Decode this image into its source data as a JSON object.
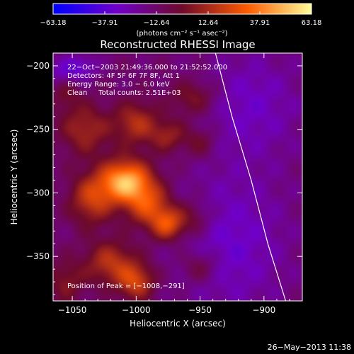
{
  "chart_data": {
    "type": "heatmap",
    "title": "Reconstructed RHESSI Image",
    "xlabel": "Heliocentric X (arcsec)",
    "ylabel": "Heliocentric Y (arcsec)",
    "xlim": [
      -1065,
      -870
    ],
    "ylim": [
      -385,
      -190
    ],
    "x_ticks": [
      -1050,
      -1000,
      -950,
      -900
    ],
    "y_ticks": [
      -200,
      -250,
      -300,
      -350
    ],
    "x_tick_labels": [
      "−1050",
      "−1000",
      "−950",
      "−900"
    ],
    "y_tick_labels": [
      "−200",
      "−250",
      "−300",
      "−350"
    ],
    "colorbar": {
      "range": [
        -63.18,
        63.18
      ],
      "ticks": [
        -63.18,
        -37.91,
        -12.64,
        12.64,
        37.91,
        63.18
      ],
      "tick_labels": [
        "−63.18",
        "−37.91",
        "−12.64",
        "12.64",
        "37.91",
        "63.18"
      ],
      "units": "(photons cm⁻² s⁻¹ asec⁻²)"
    },
    "annotations": [
      "22−Oct−2003 21:49:36.000 to 21:52:52.000",
      "Detectors: 4F 5F 6F 7F 8F, Att 1",
      "Energy Range: 3.0 − 6.0 keV",
      "Clean     Total counts: 2.51E+03"
    ],
    "peak_label": "Position of Peak = [−1008,−291]",
    "peak": [
      -1008,
      -291
    ],
    "peak_value": 63.18,
    "sources": [
      {
        "x": -1008,
        "y": -291,
        "amp": 63,
        "sx": 14,
        "sy": 12
      },
      {
        "x": -990,
        "y": -310,
        "amp": 35,
        "sx": 12,
        "sy": 12
      },
      {
        "x": -975,
        "y": -325,
        "amp": 38,
        "sx": 9,
        "sy": 9
      },
      {
        "x": -1035,
        "y": -305,
        "amp": 32,
        "sx": 12,
        "sy": 14
      },
      {
        "x": -1040,
        "y": -250,
        "amp": 25,
        "sx": 14,
        "sy": 14
      },
      {
        "x": -1000,
        "y": -245,
        "amp": 28,
        "sx": 12,
        "sy": 12
      },
      {
        "x": -975,
        "y": -255,
        "amp": 22,
        "sx": 10,
        "sy": 9
      },
      {
        "x": -955,
        "y": -225,
        "amp": 20,
        "sx": 13,
        "sy": 10
      },
      {
        "x": -950,
        "y": -260,
        "amp": 16,
        "sx": 9,
        "sy": 9
      },
      {
        "x": -1020,
        "y": -355,
        "amp": 30,
        "sx": 14,
        "sy": 12
      },
      {
        "x": -1000,
        "y": -370,
        "amp": 34,
        "sx": 10,
        "sy": 10
      },
      {
        "x": -955,
        "y": -320,
        "amp": 18,
        "sx": 10,
        "sy": 10
      },
      {
        "x": -950,
        "y": -358,
        "amp": 18,
        "sx": 10,
        "sy": 9
      },
      {
        "x": -1055,
        "y": -220,
        "amp": 14,
        "sx": 8,
        "sy": 10
      },
      {
        "x": -1055,
        "y": -370,
        "amp": 18,
        "sx": 10,
        "sy": 12
      },
      {
        "x": -925,
        "y": -340,
        "amp": -18,
        "sx": 30,
        "sy": 40
      },
      {
        "x": -910,
        "y": -230,
        "amp": -16,
        "sx": 28,
        "sy": 30
      },
      {
        "x": -1055,
        "y": -205,
        "amp": -20,
        "sx": 10,
        "sy": 8
      },
      {
        "x": -1040,
        "y": -200,
        "amp": -14,
        "sx": 8,
        "sy": 6
      }
    ],
    "background": -14,
    "limb_curve": [
      [
        -938,
        -190
      ],
      [
        -925,
        -240
      ],
      [
        -910,
        -290
      ],
      [
        -897,
        -340
      ],
      [
        -883,
        -385
      ]
    ]
  },
  "footer_date": "26−May−2013 11:38"
}
